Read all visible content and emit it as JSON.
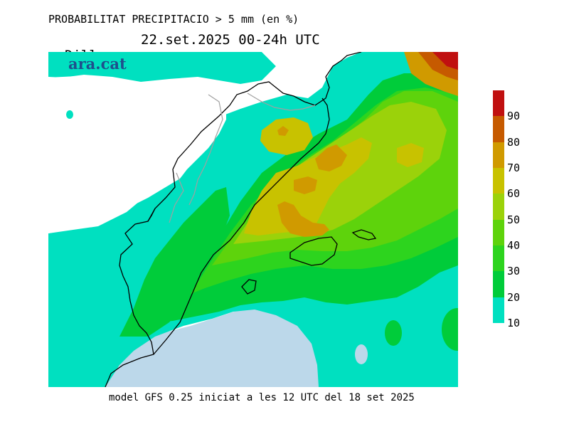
{
  "title": {
    "line1": "PROBABILITAT PRECIPITACIO > 5 mm (en %)",
    "day": "Dilluns",
    "date": "22.set.2025 00-24h UTC"
  },
  "logo": "ara.cat",
  "footer": "model GFS 0.25 iniciat a les 12 UTC del 18 set 2025",
  "legend": {
    "bands": [
      {
        "from": 10,
        "to": 20,
        "color": "#00e0c0"
      },
      {
        "from": 20,
        "to": 30,
        "color": "#00cc3a"
      },
      {
        "from": 30,
        "to": 40,
        "color": "#2dd41e"
      },
      {
        "from": 40,
        "to": 50,
        "color": "#5ed30c"
      },
      {
        "from": 50,
        "to": 60,
        "color": "#9bd20a"
      },
      {
        "from": 60,
        "to": 70,
        "color": "#c8c200"
      },
      {
        "from": 70,
        "to": 80,
        "color": "#d09a00"
      },
      {
        "from": 80,
        "to": 90,
        "color": "#c65a00"
      },
      {
        "from": 90,
        "to": 100,
        "color": "#c01010"
      }
    ],
    "tick_labels": [
      "90",
      "80",
      "70",
      "60",
      "50",
      "40",
      "30",
      "20",
      "10"
    ]
  },
  "colors": {
    "land": "#ffffff",
    "sea_no_rain": "#bcd8ea",
    "coast": "#000000",
    "border": "#a0a0a0"
  }
}
